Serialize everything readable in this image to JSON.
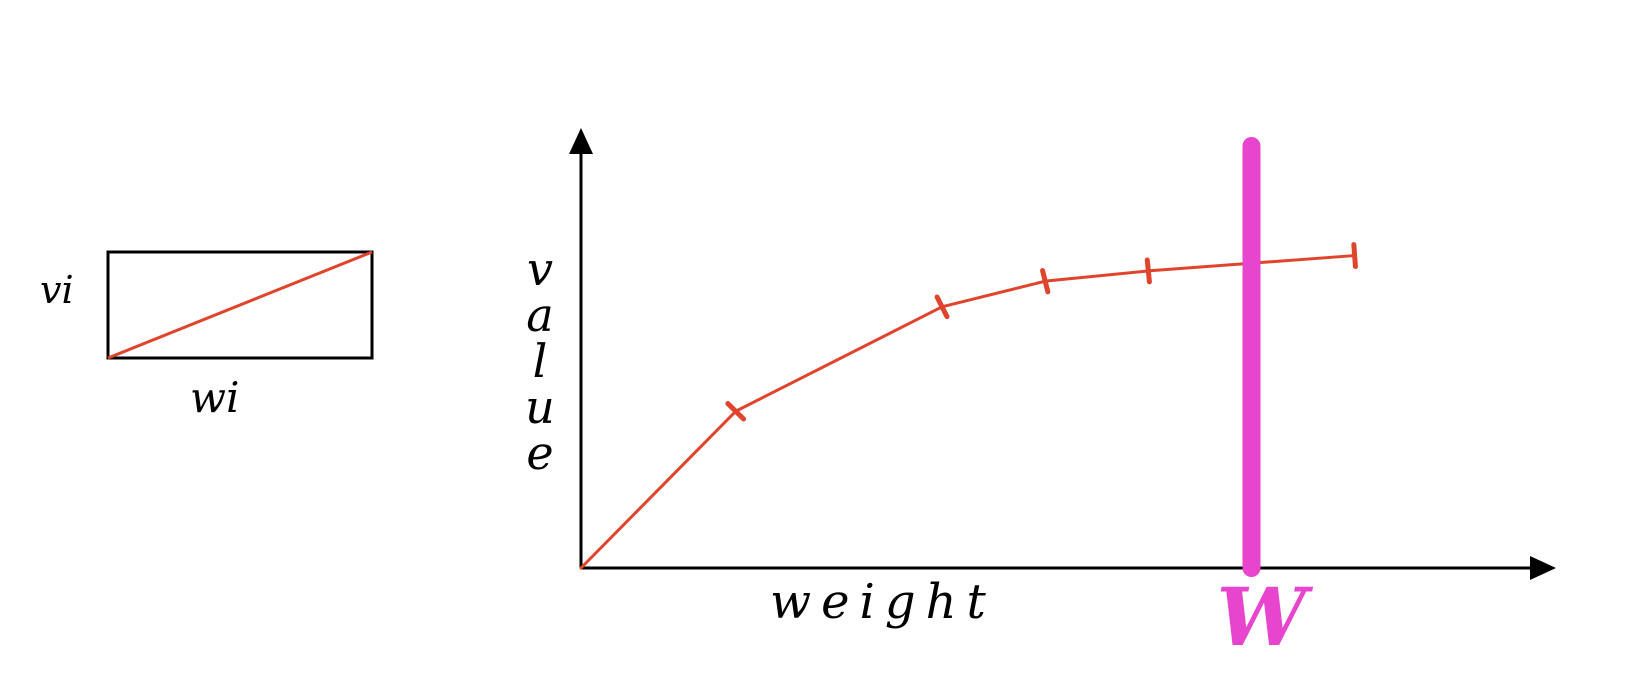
{
  "item_diagram": {
    "height_label": "vi",
    "width_label": "wi"
  },
  "chart_data": {
    "type": "line",
    "xlabel": "weight",
    "ylabel": "value",
    "capacity_label": "W",
    "series": [
      {
        "points": [
          [
            0,
            0
          ],
          [
            1.5,
            1.53
          ],
          [
            3.5,
            2.55
          ],
          [
            4.5,
            2.8
          ],
          [
            5.5,
            2.9
          ],
          [
            7.5,
            3.05
          ]
        ]
      }
    ],
    "breakpoint_indices": [
      1,
      2,
      3,
      4,
      5
    ],
    "capacity_x": 6.5,
    "xlim": [
      0,
      9.2
    ],
    "ylim": [
      0,
      4.1
    ],
    "colors": {
      "line": "#e0442c",
      "capacity": "#e845cf",
      "axis": "#000000",
      "item_box": "#000000"
    }
  }
}
